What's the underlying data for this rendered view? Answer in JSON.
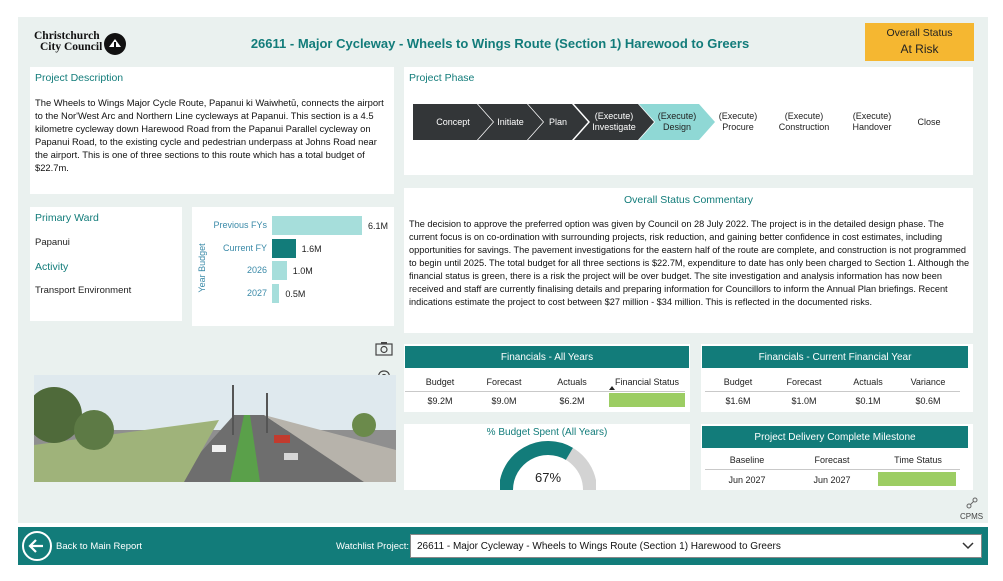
{
  "header": {
    "logo_line1": "Christchurch",
    "logo_line2": "City Council",
    "title": "26611 - Major Cycleway - Wheels to Wings Route (Section 1) Harewood to Greers",
    "status_label": "Overall Status",
    "status_value": "At Risk",
    "status_color": "#f5b731"
  },
  "description": {
    "title": "Project Description",
    "text": "The Wheels to Wings Major Cycle Route, Papanui ki Waiwhetū, connects the airport to the Nor'West Arc and Northern Line cycleways at Papanui. This section is a 4.5 kilometre cycleway down Harewood Road from the Papanui Parallel cycleway on Papanui Road, to the existing cycle and pedestrian underpass at Johns Road near the airport. This is one of three sections to this route which has a total budget of $22.7m."
  },
  "phase": {
    "title": "Project Phase",
    "steps": [
      "Concept",
      "Initiate",
      "Plan",
      "(Execute)\nInvestigate",
      "(Execute)\nDesign",
      "(Execute)\nProcure",
      "(Execute)\nConstruction",
      "(Execute)\nHandover",
      "Close"
    ],
    "current": "(Execute) Design"
  },
  "commentary": {
    "title": "Overall Status Commentary",
    "text": "The decision to approve the preferred option was given by Council on 28 July 2022. The project is in the detailed design phase. The current focus is on co-ordination with surrounding projects, risk reduction, and gaining better confidence in cost estimates, including opportunities for savings. The pavement investigations for the eastern half of the route are complete, and construction is not programmed to begin until 2025. The total budget for all three sections is $22.7M, expenditure to date has only been charged to Section 1. Although the financial status is green, there is a risk the project will be over budget. The site investigation and analysis information has now been received and staff are currently finalising details and preparing information for Councillors to inform the Annual Plan briefings. Recent indications estimate the project to cost between $27 million - $34 million. This is reflected in the documented risks."
  },
  "ward": {
    "ward_label": "Primary Ward",
    "ward_value": "Papanui",
    "activity_label": "Activity",
    "activity_value": "Transport Environment"
  },
  "chart_data": {
    "type": "bar",
    "orientation": "horizontal",
    "ylabel": "Year Budget",
    "categories": [
      "Previous FYs",
      "Current FY",
      "2026",
      "2027"
    ],
    "values": [
      6.1,
      1.6,
      1.0,
      0.5
    ],
    "value_labels": [
      "6.1M",
      "1.6M",
      "1.0M",
      "0.5M"
    ],
    "highlight": "Current FY",
    "colors": {
      "default": "#a6dedb",
      "highlight": "#127c7a"
    }
  },
  "fin_all": {
    "title": "Financials - All Years",
    "headers": [
      "Budget",
      "Forecast",
      "Actuals",
      "Financial Status"
    ],
    "values": [
      "$9.2M",
      "$9.0M",
      "$6.2M"
    ],
    "status_color": "#9ccd63"
  },
  "fin_cur": {
    "title": "Financials - Current Financial Year",
    "headers": [
      "Budget",
      "Forecast",
      "Actuals",
      "Variance"
    ],
    "values": [
      "$1.6M",
      "$1.0M",
      "$0.1M",
      "$0.6M"
    ]
  },
  "gauge": {
    "title": "% Budget Spent (All Years)",
    "value_label": "67%",
    "value": 0.67
  },
  "milestone": {
    "title": "Project Delivery Complete Milestone",
    "headers": [
      "Baseline",
      "Forecast",
      "Time Status"
    ],
    "values": [
      "Jun 2027",
      "Jun 2027"
    ],
    "status_color": "#9ccd63"
  },
  "cpms_label": "CPMS",
  "footer": {
    "back_label": "Back to Main Report",
    "watchlist_label": "Watchlist Project:",
    "watchlist_value": "26611 - Major Cycleway - Wheels to Wings Route (Section 1) Harewood to Greers"
  }
}
